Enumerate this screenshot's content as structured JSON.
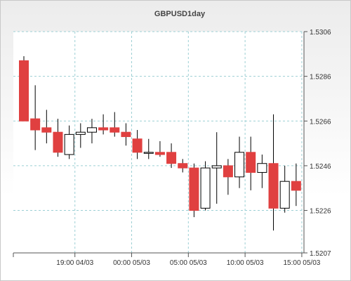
{
  "chart_data": {
    "type": "candlestick",
    "title": "GBPUSD1day",
    "xlabel": "",
    "ylabel": "",
    "ylim": [
      1.5207,
      1.5306
    ],
    "y_ticks": [
      "1.5306",
      "1.5286",
      "1.5266",
      "1.5246",
      "1.5226",
      "1.5207"
    ],
    "x_ticks": [
      {
        "label": "19:00 04/03",
        "index": 4.5
      },
      {
        "label": "00:00 05/03",
        "index": 9.5
      },
      {
        "label": "05:00 05/03",
        "index": 14.5
      },
      {
        "label": "10:00 05/03",
        "index": 19.5
      },
      {
        "label": "15:00 05/03",
        "index": 24.5
      }
    ],
    "grid": true,
    "up_color": "#ffffff",
    "down_color": "#e04040",
    "candles": [
      {
        "o": 1.5293,
        "h": 1.5295,
        "l": 1.5266,
        "c": 1.5266
      },
      {
        "o": 1.5267,
        "h": 1.5282,
        "l": 1.5253,
        "c": 1.5262
      },
      {
        "o": 1.5263,
        "h": 1.5271,
        "l": 1.5256,
        "c": 1.5261
      },
      {
        "o": 1.5261,
        "h": 1.5267,
        "l": 1.525,
        "c": 1.5252
      },
      {
        "o": 1.5251,
        "h": 1.5264,
        "l": 1.5249,
        "c": 1.526
      },
      {
        "o": 1.526,
        "h": 1.5265,
        "l": 1.5254,
        "c": 1.5261
      },
      {
        "o": 1.5261,
        "h": 1.5267,
        "l": 1.5256,
        "c": 1.5263
      },
      {
        "o": 1.5263,
        "h": 1.5269,
        "l": 1.526,
        "c": 1.5262
      },
      {
        "o": 1.5263,
        "h": 1.527,
        "l": 1.5259,
        "c": 1.5261
      },
      {
        "o": 1.5261,
        "h": 1.5265,
        "l": 1.5255,
        "c": 1.5259
      },
      {
        "o": 1.5258,
        "h": 1.5262,
        "l": 1.5249,
        "c": 1.5252
      },
      {
        "o": 1.5252,
        "h": 1.5258,
        "l": 1.5249,
        "c": 1.5252
      },
      {
        "o": 1.5252,
        "h": 1.5257,
        "l": 1.525,
        "c": 1.5251
      },
      {
        "o": 1.5252,
        "h": 1.5256,
        "l": 1.5245,
        "c": 1.5247
      },
      {
        "o": 1.5247,
        "h": 1.5249,
        "l": 1.5243,
        "c": 1.5245
      },
      {
        "o": 1.5245,
        "h": 1.5247,
        "l": 1.5223,
        "c": 1.5226
      },
      {
        "o": 1.5227,
        "h": 1.5248,
        "l": 1.5226,
        "c": 1.5245
      },
      {
        "o": 1.5245,
        "h": 1.5261,
        "l": 1.5229,
        "c": 1.5246
      },
      {
        "o": 1.5246,
        "h": 1.5249,
        "l": 1.5233,
        "c": 1.5241
      },
      {
        "o": 1.5241,
        "h": 1.5259,
        "l": 1.5236,
        "c": 1.5252
      },
      {
        "o": 1.5252,
        "h": 1.5259,
        "l": 1.5235,
        "c": 1.5243
      },
      {
        "o": 1.5243,
        "h": 1.5251,
        "l": 1.5236,
        "c": 1.5247
      },
      {
        "o": 1.5247,
        "h": 1.5269,
        "l": 1.5217,
        "c": 1.5227
      },
      {
        "o": 1.5227,
        "h": 1.5246,
        "l": 1.5225,
        "c": 1.5239
      },
      {
        "o": 1.5239,
        "h": 1.5247,
        "l": 1.5228,
        "c": 1.5235
      }
    ]
  }
}
